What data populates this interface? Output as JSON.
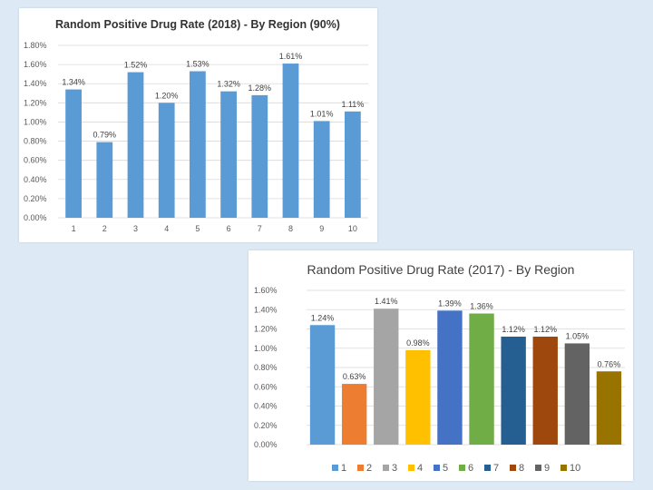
{
  "chart_data": [
    {
      "type": "bar",
      "title": "Random  Positive Drug Rate (2018) - By Region (90%)",
      "categories": [
        "1",
        "2",
        "3",
        "4",
        "5",
        "6",
        "7",
        "8",
        "9",
        "10"
      ],
      "values": [
        1.34,
        0.79,
        1.52,
        1.2,
        1.53,
        1.32,
        1.28,
        1.61,
        1.01,
        1.11
      ],
      "data_labels": [
        "1.34%",
        "0.79%",
        "1.52%",
        "1.20%",
        "1.53%",
        "1.32%",
        "1.28%",
        "1.61%",
        "1.01%",
        "1.11%"
      ],
      "ylim": [
        0,
        1.8
      ],
      "yticks": [
        "0.00%",
        "0.20%",
        "0.40%",
        "0.60%",
        "0.80%",
        "1.00%",
        "1.20%",
        "1.40%",
        "1.60%",
        "1.80%"
      ],
      "bar_color": "#5b9bd5",
      "grid": true,
      "legend": "none"
    },
    {
      "type": "bar",
      "title": "Random Positive Drug Rate (2017) - By Region",
      "categories": [
        "1",
        "2",
        "3",
        "4",
        "5",
        "6",
        "7",
        "8",
        "9",
        "10"
      ],
      "values": [
        1.24,
        0.63,
        1.41,
        0.98,
        1.39,
        1.36,
        1.12,
        1.12,
        1.05,
        0.76
      ],
      "data_labels": [
        "1.24%",
        "0.63%",
        "1.41%",
        "0.98%",
        "1.39%",
        "1.36%",
        "1.12%",
        "1.12%",
        "1.05%",
        "0.76%"
      ],
      "ylim": [
        0,
        1.6
      ],
      "yticks": [
        "0.00%",
        "0.20%",
        "0.40%",
        "0.60%",
        "0.80%",
        "1.00%",
        "1.20%",
        "1.40%",
        "1.60%"
      ],
      "colors": [
        "#5b9bd5",
        "#ed7d31",
        "#a5a5a5",
        "#ffc000",
        "#4472c4",
        "#70ad47",
        "#255e91",
        "#9e480e",
        "#636363",
        "#997300"
      ],
      "legend": "bottom",
      "legend_entries": [
        "1",
        "2",
        "3",
        "4",
        "5",
        "6",
        "7",
        "8",
        "9",
        "10"
      ],
      "grid": true
    }
  ]
}
